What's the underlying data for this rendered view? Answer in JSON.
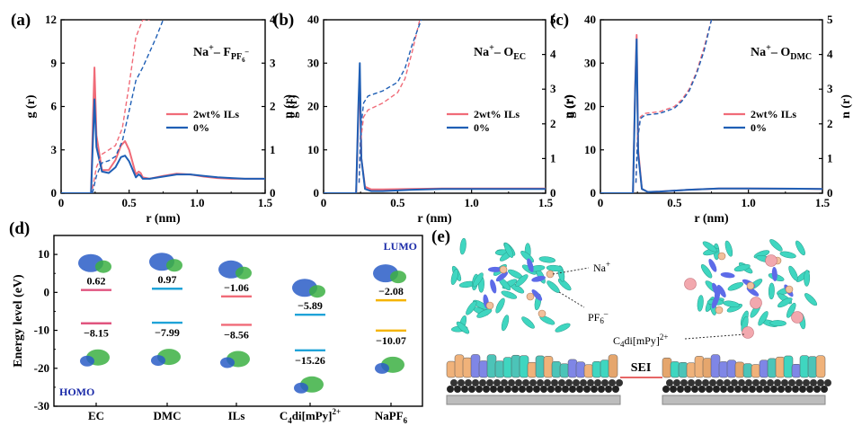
{
  "panels": {
    "a": {
      "label": "(a)",
      "ion_pair": "Na",
      "ion_sup": "+",
      "sep": "– F",
      "sub": "PF",
      "subsub": "6",
      "subsup": "–"
    },
    "b": {
      "label": "(b)",
      "ion_pair": "Na",
      "ion_sup": "+",
      "sep": "– O",
      "sub": "EC"
    },
    "c": {
      "label": "(c)",
      "ion_pair": "Na",
      "ion_sup": "+",
      "sep": "– O",
      "sub": "DMC"
    },
    "d": {
      "label": "(d)"
    },
    "e": {
      "label": "(e)"
    }
  },
  "legend": {
    "s1": "2wt% ILs",
    "s2": "0%"
  },
  "colors": {
    "s1": "#f06b78",
    "s2": "#1f5fb5",
    "lumo": "#1fa3d8",
    "homo": "#e0557f",
    "ils": "#f06b78",
    "cat": "#1fa3d8",
    "napf6": "#f5b400"
  },
  "chart_data": [
    {
      "type": "line",
      "panel": "a",
      "xlabel": "r (nm)",
      "ylabel": "g (r)",
      "y2label": "n (r)",
      "xlim": [
        0,
        1.5
      ],
      "ylim": [
        0,
        12
      ],
      "y2lim": [
        0,
        4
      ],
      "xticks": [
        "0",
        "0.5",
        "1.0",
        "1.5"
      ],
      "yticks": [
        "0",
        "3",
        "6",
        "9",
        "12"
      ],
      "y2ticks": [
        "0",
        "1",
        "2",
        "3",
        "4"
      ],
      "series": [
        {
          "name": "2wt% ILs",
          "kind": "g",
          "x": [
            0,
            0.2,
            0.22,
            0.235,
            0.245,
            0.26,
            0.3,
            0.35,
            0.4,
            0.44,
            0.47,
            0.5,
            0.55,
            0.57,
            0.585,
            0.6,
            0.65,
            0.75,
            0.85,
            0.95,
            1.05,
            1.15,
            1.25,
            1.35,
            1.5
          ],
          "y": [
            0,
            0,
            0,
            5.5,
            8.7,
            4.0,
            1.6,
            1.6,
            2.3,
            3.3,
            3.6,
            3.0,
            1.3,
            1.5,
            1.4,
            1.1,
            1.0,
            1.2,
            1.35,
            1.3,
            1.15,
            1.05,
            1.0,
            1.0,
            1.0
          ]
        },
        {
          "name": "0%",
          "kind": "g",
          "x": [
            0,
            0.2,
            0.22,
            0.235,
            0.245,
            0.26,
            0.3,
            0.35,
            0.4,
            0.44,
            0.47,
            0.5,
            0.55,
            0.57,
            0.585,
            0.6,
            0.65,
            0.75,
            0.85,
            0.95,
            1.05,
            1.15,
            1.25,
            1.35,
            1.5
          ],
          "y": [
            0,
            0,
            0,
            4.0,
            6.5,
            3.2,
            1.5,
            1.4,
            1.8,
            2.5,
            2.6,
            2.2,
            1.1,
            1.3,
            1.2,
            1.0,
            1.0,
            1.15,
            1.3,
            1.3,
            1.2,
            1.1,
            1.05,
            1.0,
            1.0
          ]
        },
        {
          "name": "2wt% ILs",
          "kind": "n",
          "dashed": true,
          "x": [
            0.23,
            0.26,
            0.3,
            0.35,
            0.4,
            0.45,
            0.5,
            0.55,
            0.6,
            0.65
          ],
          "y": [
            0.1,
            0.6,
            0.9,
            1.0,
            1.1,
            1.5,
            2.5,
            3.6,
            4.0,
            4.0
          ]
        },
        {
          "name": "0%",
          "kind": "n",
          "dashed": true,
          "x": [
            0.23,
            0.26,
            0.3,
            0.35,
            0.4,
            0.45,
            0.5,
            0.55,
            0.6,
            0.7,
            0.75
          ],
          "y": [
            0.0,
            0.4,
            0.7,
            0.75,
            0.85,
            1.2,
            1.9,
            2.6,
            2.9,
            3.6,
            4.0
          ]
        }
      ]
    },
    {
      "type": "line",
      "panel": "b",
      "xlabel": "r (nm)",
      "ylabel": "g (r)",
      "y2label": "n (r)",
      "xlim": [
        0,
        1.5
      ],
      "ylim": [
        0,
        40
      ],
      "y2lim": [
        0,
        5
      ],
      "xticks": [
        "0",
        "0.5",
        "1.0",
        "1.5"
      ],
      "yticks": [
        "0",
        "10",
        "20",
        "30",
        "40"
      ],
      "y2ticks": [
        "0",
        "1",
        "2",
        "3",
        "4",
        "5"
      ],
      "series": [
        {
          "name": "2wt% ILs",
          "kind": "g",
          "x": [
            0,
            0.2,
            0.22,
            0.235,
            0.245,
            0.255,
            0.28,
            0.32,
            0.4,
            0.6,
            0.8,
            1.0,
            1.5
          ],
          "y": [
            0,
            0,
            0,
            18,
            27,
            8,
            1.5,
            0.9,
            0.9,
            1.0,
            1.1,
            1.1,
            1.1
          ]
        },
        {
          "name": "0%",
          "kind": "g",
          "x": [
            0,
            0.2,
            0.22,
            0.235,
            0.245,
            0.255,
            0.28,
            0.32,
            0.4,
            0.6,
            0.8,
            1.0,
            1.5
          ],
          "y": [
            0,
            0,
            0,
            20,
            30,
            8,
            1.0,
            0.5,
            0.5,
            0.8,
            1.0,
            1.0,
            1.0
          ]
        },
        {
          "name": "2wt% ILs",
          "kind": "n",
          "dashed": true,
          "x": [
            0.24,
            0.25,
            0.27,
            0.3,
            0.4,
            0.5,
            0.55,
            0.6,
            0.65
          ],
          "y": [
            0.3,
            1.5,
            2.2,
            2.4,
            2.6,
            2.9,
            3.3,
            4.1,
            5.0
          ]
        },
        {
          "name": "0%",
          "kind": "n",
          "dashed": true,
          "x": [
            0.24,
            0.25,
            0.27,
            0.3,
            0.4,
            0.5,
            0.55,
            0.6,
            0.66
          ],
          "y": [
            0.3,
            1.8,
            2.6,
            2.8,
            2.95,
            3.2,
            3.6,
            4.3,
            5.0
          ]
        }
      ]
    },
    {
      "type": "line",
      "panel": "c",
      "xlabel": "r (nm)",
      "ylabel": "g (r)",
      "y2label": "n (r)",
      "xlim": [
        0,
        1.5
      ],
      "ylim": [
        0,
        40
      ],
      "y2lim": [
        0,
        5
      ],
      "xticks": [
        "0",
        "0.5",
        "1.0",
        "1.5"
      ],
      "yticks": [
        "0",
        "10",
        "20",
        "30",
        "40"
      ],
      "y2ticks": [
        "0",
        "1",
        "2",
        "3",
        "4",
        "5"
      ],
      "series": [
        {
          "name": "2wt% ILs",
          "kind": "g",
          "x": [
            0,
            0.2,
            0.22,
            0.235,
            0.245,
            0.255,
            0.28,
            0.32,
            0.4,
            0.6,
            0.8,
            1.0,
            1.5
          ],
          "y": [
            0,
            0,
            0,
            25,
            36.5,
            10,
            1.0,
            0.3,
            0.4,
            0.8,
            1.1,
            1.1,
            1.0
          ]
        },
        {
          "name": "0%",
          "kind": "g",
          "x": [
            0,
            0.2,
            0.22,
            0.235,
            0.245,
            0.255,
            0.28,
            0.32,
            0.4,
            0.6,
            0.8,
            1.0,
            1.5
          ],
          "y": [
            0,
            0,
            0,
            24,
            35.5,
            9,
            1.0,
            0.3,
            0.4,
            0.8,
            1.1,
            1.1,
            1.0
          ]
        },
        {
          "name": "2wt% ILs",
          "kind": "n",
          "dashed": true,
          "x": [
            0.24,
            0.25,
            0.27,
            0.3,
            0.4,
            0.5,
            0.55,
            0.6,
            0.65,
            0.7,
            0.75
          ],
          "y": [
            0.3,
            1.6,
            2.2,
            2.3,
            2.35,
            2.5,
            2.7,
            3.0,
            3.5,
            4.2,
            5.0
          ]
        },
        {
          "name": "0%",
          "kind": "n",
          "dashed": true,
          "x": [
            0.24,
            0.25,
            0.27,
            0.3,
            0.4,
            0.5,
            0.55,
            0.6,
            0.65,
            0.7,
            0.75
          ],
          "y": [
            0.3,
            1.5,
            2.15,
            2.25,
            2.3,
            2.45,
            2.65,
            2.95,
            3.45,
            4.1,
            5.0
          ]
        }
      ]
    },
    {
      "type": "bar",
      "panel": "d",
      "ylabel": "Energy level (eV)",
      "ylim": [
        -30,
        15
      ],
      "yticks": [
        "10",
        "0",
        "-10",
        "-20",
        "-30"
      ],
      "categories": [
        "EC",
        "DMC",
        "ILs",
        "C4di[mPy]2+",
        "NaPF6"
      ],
      "category_display": [
        {
          "main": "EC"
        },
        {
          "main": "DMC"
        },
        {
          "main": "ILs"
        },
        {
          "main": "C",
          "sub": "4",
          "rest": "di[mPy]",
          "sup": "2+"
        },
        {
          "main": "NaPF",
          "sub": "6"
        }
      ],
      "series": [
        {
          "name": "LUMO",
          "values": [
            0.62,
            0.97,
            -1.06,
            -5.89,
            -2.08
          ],
          "labels": [
            "0.62",
            "0.97",
            "−1.06",
            "−5.89",
            "−2.08"
          ]
        },
        {
          "name": "HOMO",
          "values": [
            -8.15,
            -7.99,
            -8.56,
            -15.26,
            -10.07
          ],
          "labels": [
            "−8.15",
            "−7.99",
            "−8.56",
            "−15.26",
            "−10.07"
          ]
        }
      ],
      "annotations": [
        "LUMO",
        "HOMO"
      ]
    }
  ],
  "schematic": {
    "na": "Na",
    "na_sup": "+",
    "pf": "PF",
    "pf_sub": "6",
    "pf_sup": "–",
    "cation_main": "C",
    "cation_sub": "4",
    "cation_rest": "di[mPy]",
    "cation_sup": "2+",
    "sei": "SEI"
  }
}
